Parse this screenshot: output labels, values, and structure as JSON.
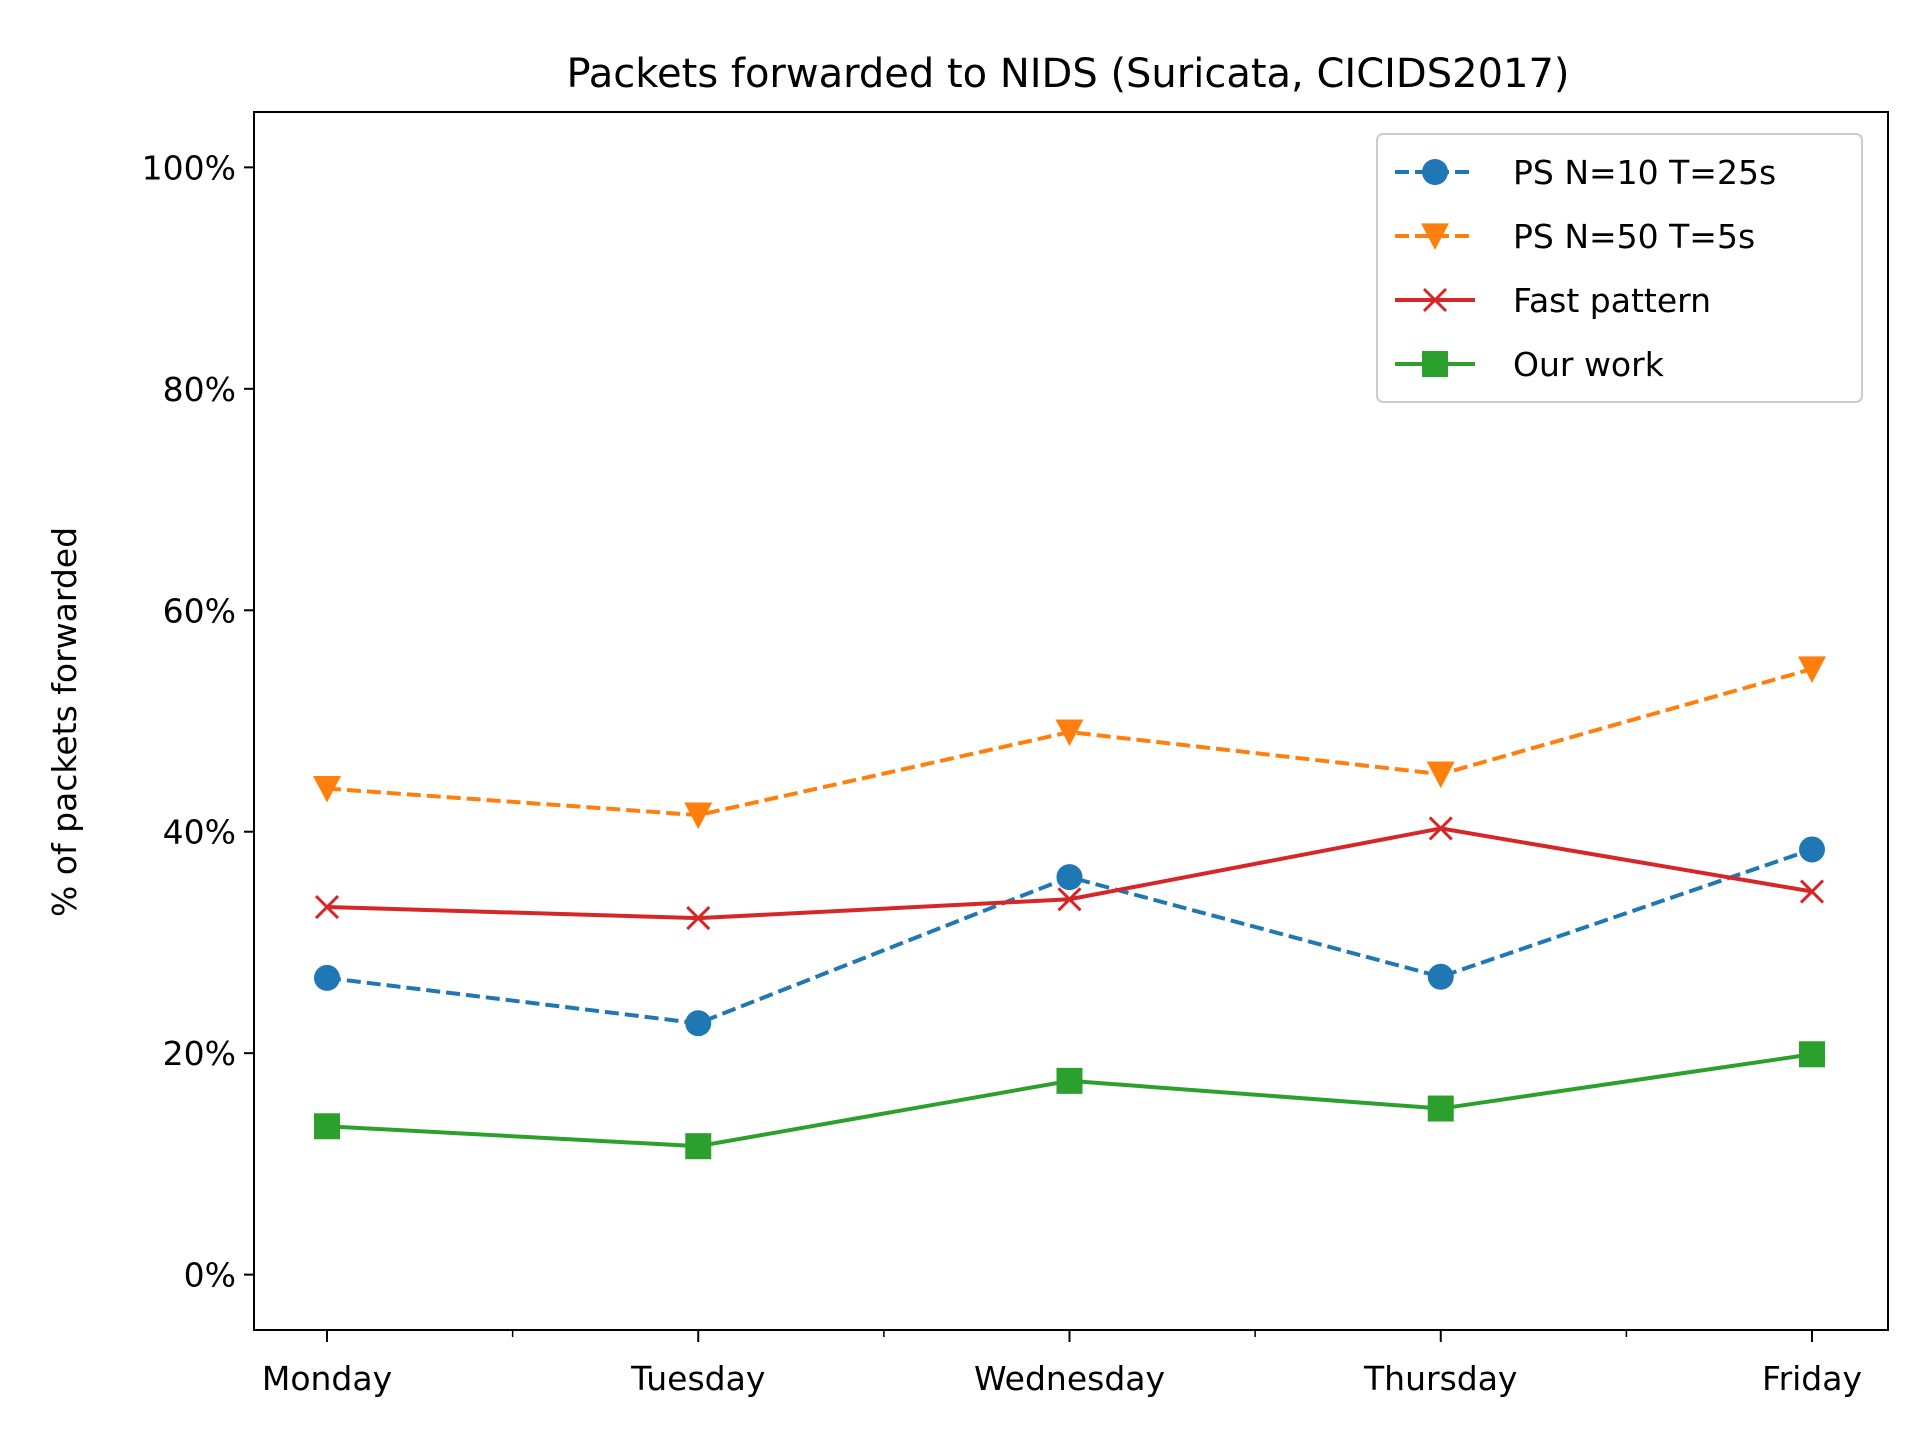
{
  "chart_data": {
    "type": "line",
    "title": "Packets forwarded to NIDS (Suricata, CICIDS2017)",
    "xlabel": "",
    "ylabel": "% of packets forwarded",
    "categories": [
      "Monday",
      "Tuesday",
      "Wednesday",
      "Thursday",
      "Friday"
    ],
    "ylim": [
      -5,
      105
    ],
    "yticks": [
      0,
      20,
      40,
      60,
      80,
      100
    ],
    "ytick_labels": [
      "0%",
      "20%",
      "40%",
      "60%",
      "80%",
      "100%"
    ],
    "grid": false,
    "legend_position": "top-right",
    "series": [
      {
        "name": "PS N=10 T=25s",
        "values": [
          26.8,
          22.7,
          35.9,
          26.9,
          38.4
        ],
        "color": "#1f77b4",
        "dash": "dashed",
        "marker": "circle"
      },
      {
        "name": "PS N=50 T=5s",
        "values": [
          43.9,
          41.5,
          49.0,
          45.2,
          54.7
        ],
        "color": "#ff7f0e",
        "dash": "dashed",
        "marker": "triangle-down"
      },
      {
        "name": "Fast pattern",
        "values": [
          33.2,
          32.2,
          33.9,
          40.3,
          34.6
        ],
        "color": "#d62728",
        "dash": "solid",
        "marker": "x"
      },
      {
        "name": "Our work",
        "values": [
          13.4,
          11.6,
          17.5,
          15.0,
          19.9
        ],
        "color": "#2ca02c",
        "dash": "solid",
        "marker": "square"
      }
    ]
  }
}
